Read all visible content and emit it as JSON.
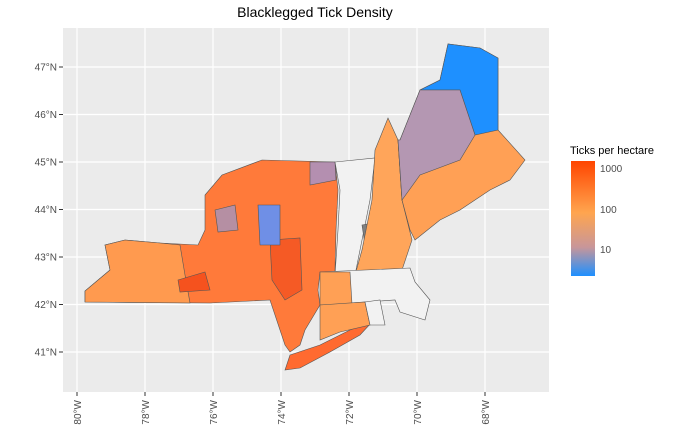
{
  "title": "Blacklegged Tick Density",
  "x_ticks": [
    "80°W",
    "78°W",
    "76°W",
    "74°W",
    "72°W",
    "70°W",
    "68°W"
  ],
  "y_ticks": [
    "47°N",
    "46°N",
    "45°N",
    "44°N",
    "43°N",
    "42°N",
    "41°N"
  ],
  "legend": {
    "title": "Ticks per hectare",
    "labels": [
      "1000",
      "100",
      "10"
    ],
    "scale": "log",
    "colors": [
      "#ff4500",
      "#ffa54f",
      "#c8969a",
      "#1e90ff"
    ]
  },
  "colors": {
    "panel": "#ebebeb",
    "na": "#f0f0f0",
    "no_data_dark": "#7f7f7f"
  }
}
